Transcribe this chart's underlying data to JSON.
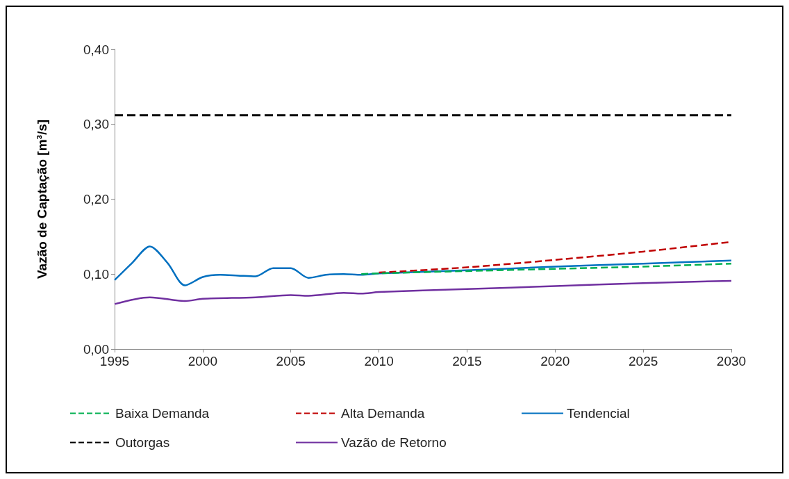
{
  "chart_data": {
    "type": "line",
    "ylabel": "Vazão de Captação [m³/s]",
    "xlim": [
      1995,
      2030
    ],
    "xticks": [
      1995,
      2000,
      2005,
      2010,
      2015,
      2020,
      2025,
      2030
    ],
    "ylim": [
      0,
      0.4
    ],
    "yticks": [
      {
        "value": 0,
        "label": "0,00"
      },
      {
        "value": 0.1,
        "label": "0,10"
      },
      {
        "value": 0.2,
        "label": "0,20"
      },
      {
        "value": 0.3,
        "label": "0,30"
      },
      {
        "value": 0.4,
        "label": "0,40"
      }
    ],
    "grid": false,
    "legend": "bottom",
    "marker": "none",
    "series": [
      {
        "name": "Baixa Demanda",
        "color": "#00b050",
        "line_style": "dashed",
        "x": [
          2009,
          2010,
          2015,
          2020,
          2025,
          2030
        ],
        "values": [
          0.1,
          0.101,
          0.104,
          0.107,
          0.11,
          0.114
        ]
      },
      {
        "name": "Alta Demanda",
        "color": "#c00000",
        "line_style": "dashed",
        "x": [
          2010,
          2015,
          2020,
          2025,
          2030
        ],
        "values": [
          0.102,
          0.109,
          0.119,
          0.13,
          0.143
        ]
      },
      {
        "name": "Tendencial",
        "color": "#0070c0",
        "line_style": "solid",
        "x": [
          1995,
          1996,
          1997,
          1998,
          1999,
          2000,
          2001,
          2002,
          2003,
          2004,
          2005,
          2006,
          2007,
          2008,
          2009,
          2010,
          2015,
          2020,
          2025,
          2030
        ],
        "values": [
          0.092,
          0.115,
          0.137,
          0.115,
          0.085,
          0.096,
          0.099,
          0.098,
          0.097,
          0.108,
          0.108,
          0.095,
          0.099,
          0.1,
          0.099,
          0.101,
          0.105,
          0.11,
          0.114,
          0.118
        ]
      },
      {
        "name": "Outorgas",
        "color": "#000000",
        "line_style": "dashed",
        "x": [
          1995,
          2030
        ],
        "values": [
          0.312,
          0.312
        ]
      },
      {
        "name": "Vazão de Retorno",
        "color": "#7030a0",
        "line_style": "solid",
        "x": [
          1995,
          1997,
          1999,
          2000,
          2003,
          2005,
          2006,
          2008,
          2009,
          2010,
          2015,
          2020,
          2025,
          2030
        ],
        "values": [
          0.06,
          0.069,
          0.064,
          0.067,
          0.069,
          0.072,
          0.071,
          0.075,
          0.074,
          0.076,
          0.08,
          0.084,
          0.088,
          0.091
        ]
      }
    ]
  }
}
